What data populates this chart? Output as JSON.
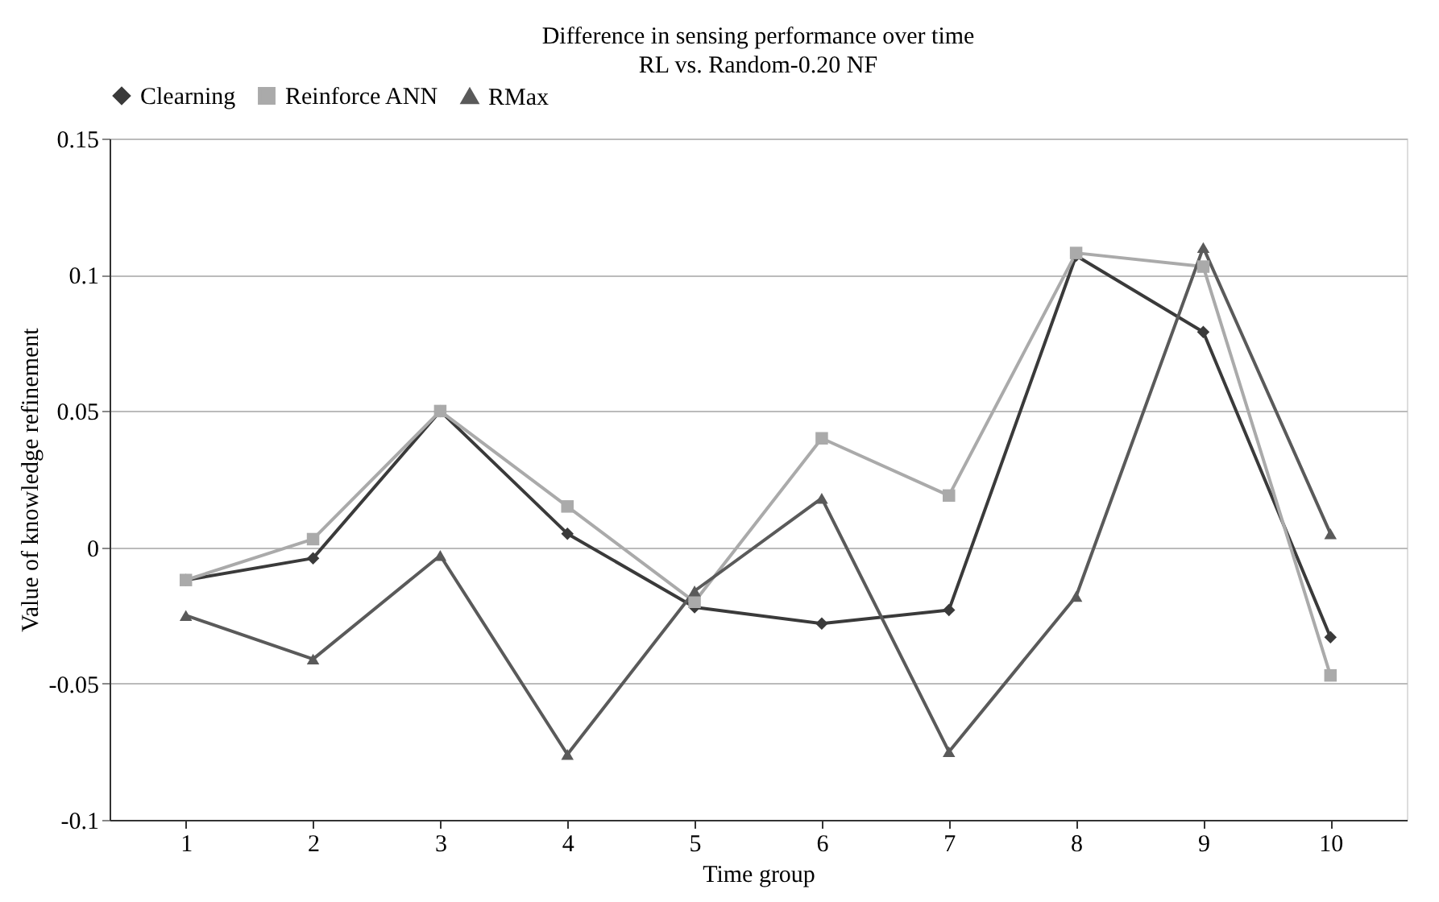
{
  "chart_data": {
    "type": "line",
    "title": "Difference in sensing performance over time",
    "subtitle": "RL vs. Random-0.20 NF",
    "xlabel": "Time group",
    "ylabel": "Value of knowledge refinement",
    "categories": [
      "1",
      "2",
      "3",
      "4",
      "5",
      "6",
      "7",
      "8",
      "9",
      "10"
    ],
    "series": [
      {
        "name": "Clearning",
        "color": "#3a3a3a",
        "marker": "diamond",
        "values": [
          -0.012,
          -0.004,
          0.05,
          0.005,
          -0.022,
          -0.028,
          -0.023,
          0.107,
          0.079,
          -0.033
        ]
      },
      {
        "name": "Reinforce ANN",
        "color": "#aaaaaa",
        "marker": "square",
        "values": [
          -0.012,
          0.003,
          0.05,
          0.015,
          -0.02,
          0.04,
          0.019,
          0.108,
          0.103,
          -0.047
        ]
      },
      {
        "name": "RMax",
        "color": "#5a5a5a",
        "marker": "triangle",
        "values": [
          -0.025,
          -0.041,
          -0.003,
          -0.076,
          -0.016,
          0.018,
          -0.075,
          -0.018,
          0.11,
          0.005
        ]
      }
    ],
    "ylim": [
      -0.1,
      0.15
    ],
    "yticks": [
      -0.1,
      -0.05,
      0,
      0.05,
      0.1,
      0.15
    ],
    "grid": "y",
    "legend": "top",
    "line_style": "solid"
  }
}
